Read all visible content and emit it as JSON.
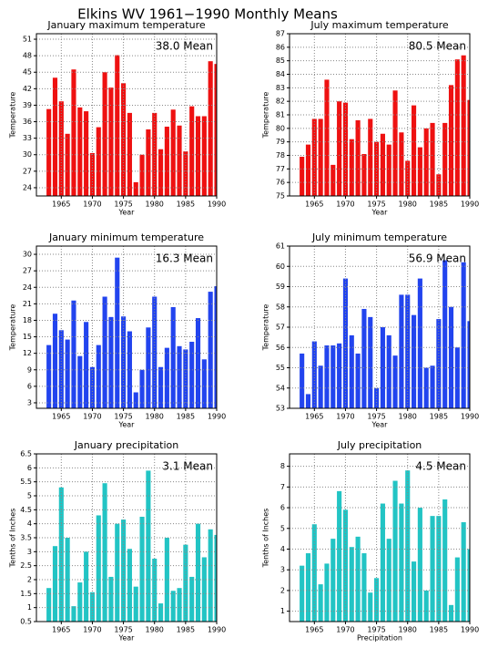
{
  "title": "Elkins WV   1961−1990 Monthly Means",
  "chart_data": [
    {
      "type": "bar",
      "title": "January maximum temperature",
      "annotation": "38.0 Mean",
      "xlabel": "Year",
      "ylabel": "Temperature",
      "color": "#ee1111",
      "grid": true,
      "x": [
        1963,
        1964,
        1965,
        1966,
        1967,
        1968,
        1969,
        1970,
        1971,
        1972,
        1973,
        1974,
        1975,
        1976,
        1977,
        1978,
        1979,
        1980,
        1981,
        1982,
        1983,
        1984,
        1985,
        1986,
        1987,
        1988,
        1989,
        1990
      ],
      "values": [
        38.3,
        44,
        39.7,
        33.8,
        45.5,
        38.6,
        37.9,
        30.3,
        35,
        45,
        42.2,
        48.1,
        43,
        37.6,
        25,
        30,
        34.6,
        37.6,
        31,
        35.1,
        38.2,
        35.3,
        30.6,
        38.8,
        37,
        37,
        47,
        46.5
      ],
      "xlim": [
        1961,
        1990
      ],
      "xticks": [
        1965,
        1970,
        1975,
        1980,
        1985,
        1990
      ],
      "ylim": [
        22.5,
        52
      ],
      "yticks": [
        24,
        27,
        30,
        33,
        36,
        39,
        42,
        45,
        48,
        51
      ]
    },
    {
      "type": "bar",
      "title": "July maximum temperature",
      "annotation": "80.5 Mean",
      "xlabel": "Year",
      "ylabel": "Temperature",
      "color": "#ee1111",
      "grid": true,
      "x": [
        1963,
        1964,
        1965,
        1966,
        1967,
        1968,
        1969,
        1970,
        1971,
        1972,
        1973,
        1974,
        1975,
        1976,
        1977,
        1978,
        1979,
        1980,
        1981,
        1982,
        1983,
        1984,
        1985,
        1986,
        1987,
        1988,
        1989,
        1990
      ],
      "values": [
        77.9,
        78.8,
        80.7,
        80.7,
        83.6,
        77.3,
        82,
        81.9,
        79.2,
        80.6,
        78.1,
        80.7,
        79,
        79.6,
        78.8,
        82.8,
        79.7,
        77.6,
        81.7,
        78.6,
        80,
        80.4,
        76.6,
        80.4,
        83.2,
        85.1,
        85.4,
        82.1
      ],
      "xlim": [
        1961,
        1990
      ],
      "xticks": [
        1965,
        1970,
        1975,
        1980,
        1985,
        1990
      ],
      "ylim": [
        75,
        87
      ],
      "yticks": [
        75,
        76,
        77,
        78,
        79,
        80,
        81,
        82,
        83,
        84,
        85,
        86,
        87
      ]
    },
    {
      "type": "bar",
      "title": "January minimum temperature",
      "annotation": "16.3 Mean",
      "xlabel": "Year",
      "ylabel": "Temperature",
      "color": "#2244ee",
      "grid": true,
      "x": [
        1963,
        1964,
        1965,
        1966,
        1967,
        1968,
        1969,
        1970,
        1971,
        1972,
        1973,
        1974,
        1975,
        1976,
        1977,
        1978,
        1979,
        1980,
        1981,
        1982,
        1983,
        1984,
        1985,
        1986,
        1987,
        1988,
        1989,
        1990
      ],
      "values": [
        13.5,
        19.2,
        16.2,
        14.5,
        21.6,
        11.5,
        17.7,
        9.5,
        13.5,
        22.3,
        18.6,
        29.4,
        18.7,
        16,
        4.9,
        9,
        16.7,
        22.3,
        9.5,
        13,
        20.4,
        13.3,
        12.7,
        14.1,
        18.4,
        10.9,
        23.2,
        24.2
      ],
      "xlim": [
        1961,
        1990
      ],
      "xticks": [
        1965,
        1970,
        1975,
        1980,
        1985,
        1990
      ],
      "ylim": [
        2,
        31.5
      ],
      "yticks": [
        3,
        6,
        9,
        12,
        15,
        18,
        21,
        24,
        27,
        30
      ]
    },
    {
      "type": "bar",
      "title": "July minimum temperature",
      "annotation": "56.9 Mean",
      "xlabel": "Year",
      "ylabel": "Temperature",
      "color": "#2244ee",
      "grid": true,
      "x": [
        1963,
        1964,
        1965,
        1966,
        1967,
        1968,
        1969,
        1970,
        1971,
        1972,
        1973,
        1974,
        1975,
        1976,
        1977,
        1978,
        1979,
        1980,
        1981,
        1982,
        1983,
        1984,
        1985,
        1986,
        1987,
        1988,
        1989,
        1990
      ],
      "values": [
        55.7,
        53.7,
        56.3,
        55.1,
        56.1,
        56.1,
        56.2,
        59.4,
        56.6,
        55.7,
        57.9,
        57.5,
        54,
        57,
        56.6,
        55.6,
        58.6,
        58.6,
        57.6,
        59.4,
        55,
        55.1,
        57.4,
        60.3,
        58,
        56,
        60.2,
        57.3
      ],
      "xlim": [
        1961,
        1990
      ],
      "xticks": [
        1965,
        1970,
        1975,
        1980,
        1985,
        1990
      ],
      "ylim": [
        53,
        61
      ],
      "yticks": [
        53,
        54,
        55,
        56,
        57,
        58,
        59,
        60,
        61
      ]
    },
    {
      "type": "bar",
      "title": "January precipitation",
      "annotation": "3.1 Mean",
      "xlabel": "Year",
      "ylabel": "Tenths of Inches",
      "color": "#22c4c4",
      "grid": true,
      "x": [
        1963,
        1964,
        1965,
        1966,
        1967,
        1968,
        1969,
        1970,
        1971,
        1972,
        1973,
        1974,
        1975,
        1976,
        1977,
        1978,
        1979,
        1980,
        1981,
        1982,
        1983,
        1984,
        1985,
        1986,
        1987,
        1988,
        1989,
        1990
      ],
      "values": [
        1.7,
        3.2,
        5.3,
        3.5,
        1.05,
        1.9,
        3,
        1.55,
        4.3,
        5.45,
        2.1,
        4,
        4.15,
        3.1,
        1.75,
        4.25,
        5.9,
        2.75,
        1.15,
        3.5,
        1.6,
        1.7,
        3.25,
        2.1,
        4,
        2.8,
        3.8,
        3.6
      ],
      "xlim": [
        1961,
        1990
      ],
      "xticks": [
        1965,
        1970,
        1975,
        1980,
        1985,
        1990
      ],
      "ylim": [
        0.5,
        6.5
      ],
      "yticks": [
        0.5,
        1,
        1.5,
        2,
        2.5,
        3,
        3.5,
        4,
        4.5,
        5,
        5.5,
        6,
        6.5
      ]
    },
    {
      "type": "bar",
      "title": "July precipitation",
      "annotation": "4.5 Mean",
      "xlabel": "Precipitation",
      "ylabel": "Tenths of Inches",
      "color": "#22c4c4",
      "grid": true,
      "x": [
        1963,
        1964,
        1965,
        1966,
        1967,
        1968,
        1969,
        1970,
        1971,
        1972,
        1973,
        1974,
        1975,
        1976,
        1977,
        1978,
        1979,
        1980,
        1981,
        1982,
        1983,
        1984,
        1985,
        1986,
        1987,
        1988,
        1989,
        1990
      ],
      "values": [
        3.2,
        3.8,
        5.2,
        2.3,
        3.3,
        4.5,
        6.8,
        5.9,
        4.1,
        4.6,
        3.8,
        1.9,
        2.6,
        6.2,
        4.5,
        7.3,
        6.2,
        7.8,
        3.4,
        6,
        2,
        5.6,
        5.6,
        6.4,
        1.3,
        3.6,
        5.3,
        4
      ],
      "xlim": [
        1961,
        1990
      ],
      "xticks": [
        1965,
        1970,
        1975,
        1980,
        1985,
        1990
      ],
      "ylim": [
        0.5,
        8.6
      ],
      "yticks": [
        1,
        2,
        3,
        4,
        5,
        6,
        7,
        8
      ]
    }
  ]
}
